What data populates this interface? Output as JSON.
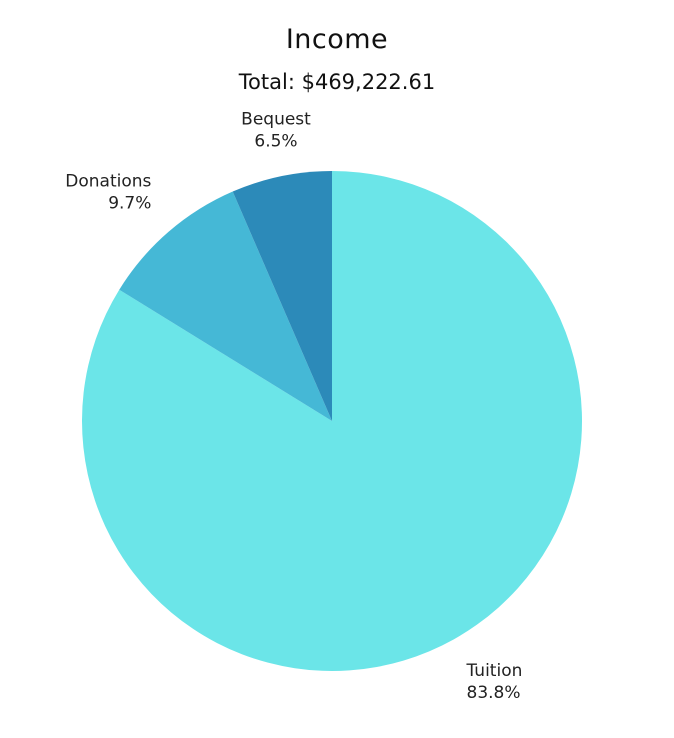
{
  "chart_data": {
    "type": "pie",
    "title": "Income",
    "subtitle": "Total: $469,222.61",
    "start_angle_deg": 0,
    "direction": "clockwise",
    "slices": [
      {
        "label": "Tuition",
        "value": 83.8,
        "percent_label": "83.8%",
        "color": "#6be5e8"
      },
      {
        "label": "Donations",
        "value": 9.7,
        "percent_label": "9.7%",
        "color": "#45b8d6"
      },
      {
        "label": "Bequest",
        "value": 6.5,
        "percent_label": "6.5%",
        "color": "#2c8ab9"
      }
    ]
  }
}
